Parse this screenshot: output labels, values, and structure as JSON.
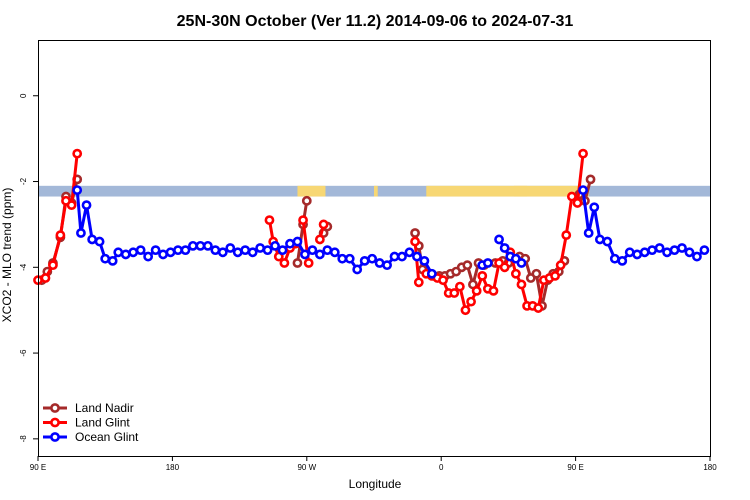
{
  "chart_data": {
    "type": "line",
    "title": "25N-30N October (Ver 11.2)   2014-09-06 to 2024-07-31",
    "xlabel": "Longitude",
    "ylabel": "XCO2 - MLO trend (ppm)",
    "xlim": [
      -90,
      270
    ],
    "ylim": [
      -8.4,
      1.3
    ],
    "x_ticks": [
      {
        "value": -90,
        "label": "90 E"
      },
      {
        "value": -18,
        "label": "180"
      },
      {
        "value": 54,
        "label": "90 W"
      },
      {
        "value": 126,
        "label": "0"
      },
      {
        "value": 198,
        "label": "90 E"
      },
      {
        "value": 270,
        "label": "180"
      }
    ],
    "y_ticks": [
      {
        "value": 0,
        "label": "0"
      },
      {
        "value": -2,
        "label": "-2"
      },
      {
        "value": -4,
        "label": "-4"
      },
      {
        "value": -6,
        "label": "-6"
      },
      {
        "value": -8,
        "label": "-8"
      }
    ],
    "land_band": {
      "y_range": [
        -2.35,
        -2.1
      ],
      "ocean_color": "#a3b8d8",
      "land_color": "#f7d774",
      "land_segments": [
        [
          49,
          64
        ],
        [
          90,
          92
        ],
        [
          118,
          205
        ],
        [
          165,
          172
        ]
      ]
    },
    "legend": {
      "position": "bottom-left",
      "entries": [
        {
          "label": "Land Nadir",
          "color": "#a52a2a"
        },
        {
          "label": "Land Glint",
          "color": "#ff0000"
        },
        {
          "label": "Ocean Glint",
          "color": "#0000ff"
        }
      ]
    },
    "series": [
      {
        "name": "Land Nadir",
        "color": "#a52a2a",
        "segments": [
          [
            [
              -88,
              -4.3
            ],
            [
              -85,
              -4.1
            ],
            [
              -82,
              -3.9
            ],
            [
              -78,
              -3.3
            ],
            [
              -75,
              -2.35
            ],
            [
              -72,
              -2.5
            ],
            [
              -69,
              -1.95
            ]
          ],
          [
            [
              49,
              -3.9
            ],
            [
              52,
              -3.0
            ],
            [
              54,
              -2.45
            ]
          ],
          [
            [
              63,
              -3.2
            ],
            [
              65,
              -3.05
            ]
          ],
          [
            [
              112,
              -3.2
            ],
            [
              114,
              -3.5
            ],
            [
              116,
              -4.05
            ]
          ],
          [
            [
              120,
              -4.15
            ],
            [
              122,
              -4.2
            ],
            [
              125,
              -4.2
            ],
            [
              128,
              -4.2
            ],
            [
              131,
              -4.15
            ],
            [
              134,
              -4.1
            ],
            [
              137,
              -4.0
            ],
            [
              140,
              -3.95
            ],
            [
              143,
              -4.4
            ],
            [
              146,
              -3.9
            ],
            [
              149,
              -3.95
            ],
            [
              155,
              -3.9
            ],
            [
              159,
              -3.85
            ],
            [
              162,
              -3.9
            ],
            [
              165,
              -3.8
            ],
            [
              168,
              -3.75
            ],
            [
              171,
              -3.8
            ],
            [
              174,
              -4.25
            ],
            [
              177,
              -4.15
            ],
            [
              180,
              -4.9
            ],
            [
              183,
              -4.3
            ],
            [
              186,
              -4.15
            ],
            [
              189,
              -4.1
            ],
            [
              192,
              -3.85
            ]
          ],
          [
            [
              200,
              -2.3
            ],
            [
              203,
              -2.45
            ],
            [
              206,
              -1.95
            ]
          ]
        ]
      },
      {
        "name": "Land Glint",
        "color": "#ff0000",
        "segments": [
          [
            [
              -90,
              -4.3
            ],
            [
              -86,
              -4.25
            ],
            [
              -82,
              -3.95
            ],
            [
              -78,
              -3.25
            ],
            [
              -75,
              -2.45
            ],
            [
              -72,
              -2.55
            ],
            [
              -69,
              -1.35
            ]
          ],
          [
            [
              34,
              -2.9
            ],
            [
              36,
              -3.4
            ],
            [
              39,
              -3.75
            ],
            [
              42,
              -3.9
            ],
            [
              45,
              -3.55
            ],
            [
              48,
              -3.45
            ]
          ],
          [
            [
              52,
              -2.9
            ],
            [
              55,
              -3.9
            ]
          ],
          [
            [
              61,
              -3.35
            ],
            [
              63,
              -3.0
            ]
          ],
          [
            [
              112,
              -3.4
            ],
            [
              114,
              -4.35
            ]
          ],
          [
            [
              118,
              -4.15
            ],
            [
              121,
              -4.2
            ],
            [
              124,
              -4.25
            ],
            [
              127,
              -4.3
            ],
            [
              130,
              -4.6
            ],
            [
              133,
              -4.6
            ],
            [
              136,
              -4.45
            ],
            [
              139,
              -5.0
            ],
            [
              142,
              -4.8
            ],
            [
              145,
              -4.55
            ],
            [
              148,
              -4.2
            ],
            [
              151,
              -4.5
            ],
            [
              154,
              -4.55
            ],
            [
              157,
              -3.9
            ],
            [
              160,
              -4.0
            ],
            [
              163,
              -3.65
            ],
            [
              166,
              -4.15
            ],
            [
              169,
              -4.4
            ],
            [
              172,
              -4.9
            ],
            [
              175,
              -4.9
            ],
            [
              178,
              -4.95
            ],
            [
              181,
              -4.3
            ],
            [
              184,
              -4.25
            ],
            [
              187,
              -4.2
            ],
            [
              190,
              -3.95
            ],
            [
              193,
              -3.25
            ],
            [
              196,
              -2.35
            ],
            [
              199,
              -2.5
            ],
            [
              202,
              -1.35
            ]
          ]
        ]
      },
      {
        "name": "Ocean Glint",
        "color": "#0000ff",
        "segments": [
          [
            [
              -69,
              -2.2
            ],
            [
              -67,
              -3.2
            ],
            [
              -64,
              -2.55
            ],
            [
              -61,
              -3.35
            ],
            [
              -57,
              -3.4
            ],
            [
              -54,
              -3.8
            ],
            [
              -50,
              -3.85
            ],
            [
              -47,
              -3.65
            ],
            [
              -43,
              -3.7
            ],
            [
              -39,
              -3.65
            ],
            [
              -35,
              -3.6
            ],
            [
              -31,
              -3.75
            ],
            [
              -27,
              -3.6
            ],
            [
              -23,
              -3.7
            ],
            [
              -19,
              -3.65
            ],
            [
              -15,
              -3.6
            ],
            [
              -11,
              -3.6
            ],
            [
              -7,
              -3.5
            ],
            [
              -3,
              -3.5
            ],
            [
              1,
              -3.5
            ],
            [
              5,
              -3.6
            ],
            [
              9,
              -3.65
            ],
            [
              13,
              -3.55
            ],
            [
              17,
              -3.65
            ],
            [
              21,
              -3.6
            ],
            [
              25,
              -3.65
            ],
            [
              29,
              -3.55
            ],
            [
              33,
              -3.6
            ],
            [
              37,
              -3.5
            ],
            [
              41,
              -3.6
            ],
            [
              45,
              -3.45
            ],
            [
              49,
              -3.4
            ],
            [
              53,
              -3.7
            ],
            [
              57,
              -3.6
            ],
            [
              61,
              -3.7
            ],
            [
              65,
              -3.6
            ],
            [
              69,
              -3.65
            ],
            [
              73,
              -3.8
            ],
            [
              77,
              -3.8
            ],
            [
              81,
              -4.05
            ],
            [
              85,
              -3.85
            ],
            [
              89,
              -3.8
            ],
            [
              93,
              -3.9
            ],
            [
              97,
              -3.95
            ],
            [
              101,
              -3.75
            ],
            [
              105,
              -3.75
            ],
            [
              109,
              -3.65
            ],
            [
              113,
              -3.75
            ],
            [
              117,
              -3.85
            ],
            [
              121,
              -4.15
            ]
          ],
          [
            [
              148,
              -3.95
            ],
            [
              151,
              -3.9
            ]
          ],
          [
            [
              157,
              -3.35
            ],
            [
              160,
              -3.55
            ],
            [
              163,
              -3.75
            ],
            [
              166,
              -3.8
            ],
            [
              169,
              -3.9
            ]
          ],
          [
            [
              202,
              -2.2
            ],
            [
              205,
              -3.2
            ],
            [
              208,
              -2.6
            ],
            [
              211,
              -3.35
            ],
            [
              215,
              -3.4
            ],
            [
              219,
              -3.8
            ],
            [
              223,
              -3.85
            ],
            [
              227,
              -3.65
            ],
            [
              231,
              -3.7
            ],
            [
              235,
              -3.65
            ],
            [
              239,
              -3.6
            ],
            [
              243,
              -3.55
            ],
            [
              247,
              -3.65
            ],
            [
              251,
              -3.6
            ],
            [
              255,
              -3.55
            ],
            [
              259,
              -3.65
            ],
            [
              263,
              -3.75
            ],
            [
              267,
              -3.6
            ]
          ]
        ]
      }
    ]
  }
}
